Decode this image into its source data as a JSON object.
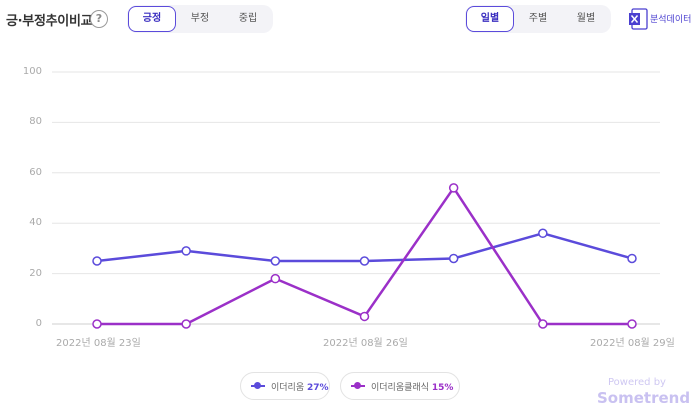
{
  "header": {
    "title": "긍·부정추이비교",
    "help": "?",
    "sentiment_tabs": [
      "긍정",
      "부정",
      "중립"
    ],
    "period_tabs": [
      "일별",
      "주별",
      "월별"
    ],
    "excel_label": "분석데이터"
  },
  "colors": {
    "accent": "#5b4bdb",
    "series1": "#5b4bdb",
    "series2": "#9b30c8"
  },
  "chart_data": {
    "type": "line",
    "x": [
      "2022-08-23",
      "2022-08-24",
      "2022-08-25",
      "2022-08-26",
      "2022-08-27",
      "2022-08-28",
      "2022-08-29"
    ],
    "xtick_labels": [
      "2022년 08월 23일",
      "2022년 08월 26일",
      "2022년 08월 29일"
    ],
    "ylim": [
      0,
      100
    ],
    "yticks": [
      "100",
      "80",
      "60",
      "40",
      "20",
      "0"
    ],
    "grid": true,
    "series": [
      {
        "name": "이더리움",
        "share": "27%",
        "values": [
          25,
          29,
          25,
          25,
          26,
          36,
          26
        ]
      },
      {
        "name": "이더리움클래식",
        "share": "15%",
        "values": [
          0,
          0,
          18,
          3,
          54,
          0,
          0
        ]
      }
    ],
    "legend_position": "bottom"
  },
  "footer": {
    "powered_by": "Powered by",
    "brand": "Sometrend"
  }
}
